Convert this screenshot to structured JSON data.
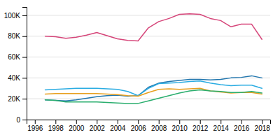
{
  "chart_data": {
    "type": "line",
    "x": [
      1997,
      1998,
      1999,
      2000,
      2001,
      2002,
      2003,
      2004,
      2005,
      2006,
      2007,
      2008,
      2009,
      2010,
      2011,
      2012,
      2013,
      2014,
      2015,
      2016,
      2017,
      2018
    ],
    "series": [
      {
        "color": "#d6467a",
        "values": [
          80000,
          79500,
          78000,
          79000,
          81000,
          83500,
          80500,
          77500,
          76000,
          75500,
          88000,
          94000,
          97000,
          101000,
          101500,
          101000,
          97000,
          95000,
          89000,
          91500,
          91500,
          77000
        ]
      },
      {
        "color": "#2176ae",
        "values": [
          19000,
          18500,
          18000,
          19000,
          20500,
          22000,
          23000,
          23500,
          22500,
          23000,
          31000,
          35000,
          36500,
          37500,
          38500,
          38500,
          38000,
          38500,
          40000,
          40500,
          42000,
          40000
        ]
      },
      {
        "color": "#2aace2",
        "values": [
          28500,
          29000,
          29500,
          30000,
          30000,
          30000,
          29500,
          29000,
          27000,
          23000,
          30000,
          34500,
          35000,
          35500,
          36500,
          37000,
          35000,
          33500,
          32500,
          33000,
          33000,
          30000
        ]
      },
      {
        "color": "#e8a020",
        "values": [
          24500,
          25000,
          25000,
          25000,
          25000,
          25000,
          24500,
          24000,
          23000,
          22500,
          26000,
          29000,
          29500,
          29000,
          29500,
          30000,
          27500,
          26500,
          25500,
          26000,
          26000,
          24500
        ]
      },
      {
        "color": "#2aae6e",
        "values": [
          19000,
          18500,
          17000,
          17000,
          17000,
          17000,
          16500,
          16000,
          15500,
          15500,
          18000,
          20500,
          23000,
          25500,
          27500,
          28500,
          27500,
          27000,
          26000,
          26000,
          27000,
          25500
        ]
      }
    ],
    "xlim": [
      1995.2,
      2018.8
    ],
    "ylim": [
      0,
      108000
    ],
    "xticks": [
      1996,
      1998,
      2000,
      2002,
      2004,
      2006,
      2008,
      2010,
      2012,
      2014,
      2016,
      2018
    ],
    "yticks": [
      0,
      {
        "value": 20000,
        "label": "20K"
      },
      {
        "value": 40000,
        "label": "40K"
      },
      {
        "value": 60000,
        "label": "60K"
      },
      {
        "value": 80000,
        "label": "80K"
      },
      {
        "value": 100000,
        "label": "100K"
      }
    ],
    "grid": true
  }
}
